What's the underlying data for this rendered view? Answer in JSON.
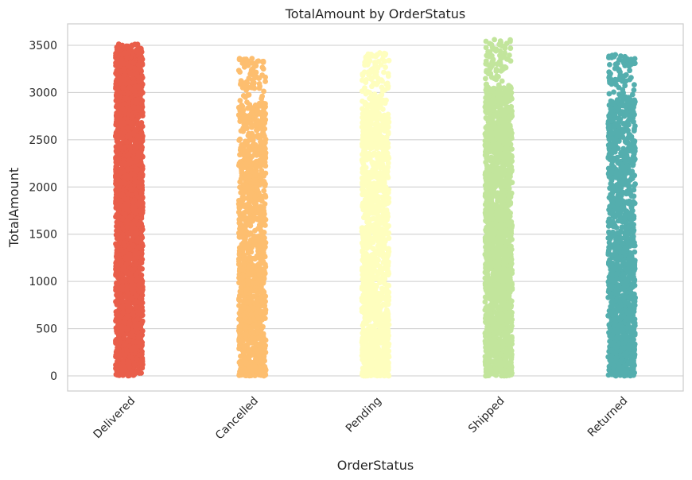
{
  "chart_data": {
    "type": "scatter",
    "subtype": "strip",
    "title": "TotalAmount by OrderStatus",
    "xlabel": "OrderStatus",
    "ylabel": "TotalAmount",
    "categories": [
      "Delivered",
      "Cancelled",
      "Pending",
      "Shipped",
      "Returned"
    ],
    "yticks": [
      0,
      500,
      1000,
      1500,
      2000,
      2500,
      3000,
      3500
    ],
    "ylim": [
      -170,
      3710
    ],
    "grid": true,
    "series": [
      {
        "name": "Delivered",
        "color": "#e95e4a",
        "min": 0,
        "max": 3520,
        "density": "very high",
        "outliers": [
          3480,
          3500,
          3510,
          3450,
          3420
        ]
      },
      {
        "name": "Cancelled",
        "color": "#fdbe6f",
        "min": 0,
        "max": 3360,
        "density": "medium",
        "outliers": [
          3360,
          3320,
          3300,
          3250,
          3200,
          3150,
          3100,
          3050
        ]
      },
      {
        "name": "Pending",
        "color": "#fefebe",
        "min": 0,
        "max": 3420,
        "density": "medium",
        "outliers": [
          3420,
          3400,
          3380,
          3330,
          3280,
          3250,
          3200
        ]
      },
      {
        "name": "Shipped",
        "color": "#c2e59c",
        "min": 0,
        "max": 3560,
        "density": "high",
        "outliers": [
          3560,
          3540,
          3520,
          3500,
          3460,
          3420,
          3380,
          3350
        ]
      },
      {
        "name": "Returned",
        "color": "#54aeae",
        "min": 0,
        "max": 3400,
        "density": "medium",
        "outliers": [
          3400,
          3380,
          3340,
          3310,
          3280,
          3230,
          3180,
          3120
        ]
      }
    ]
  }
}
